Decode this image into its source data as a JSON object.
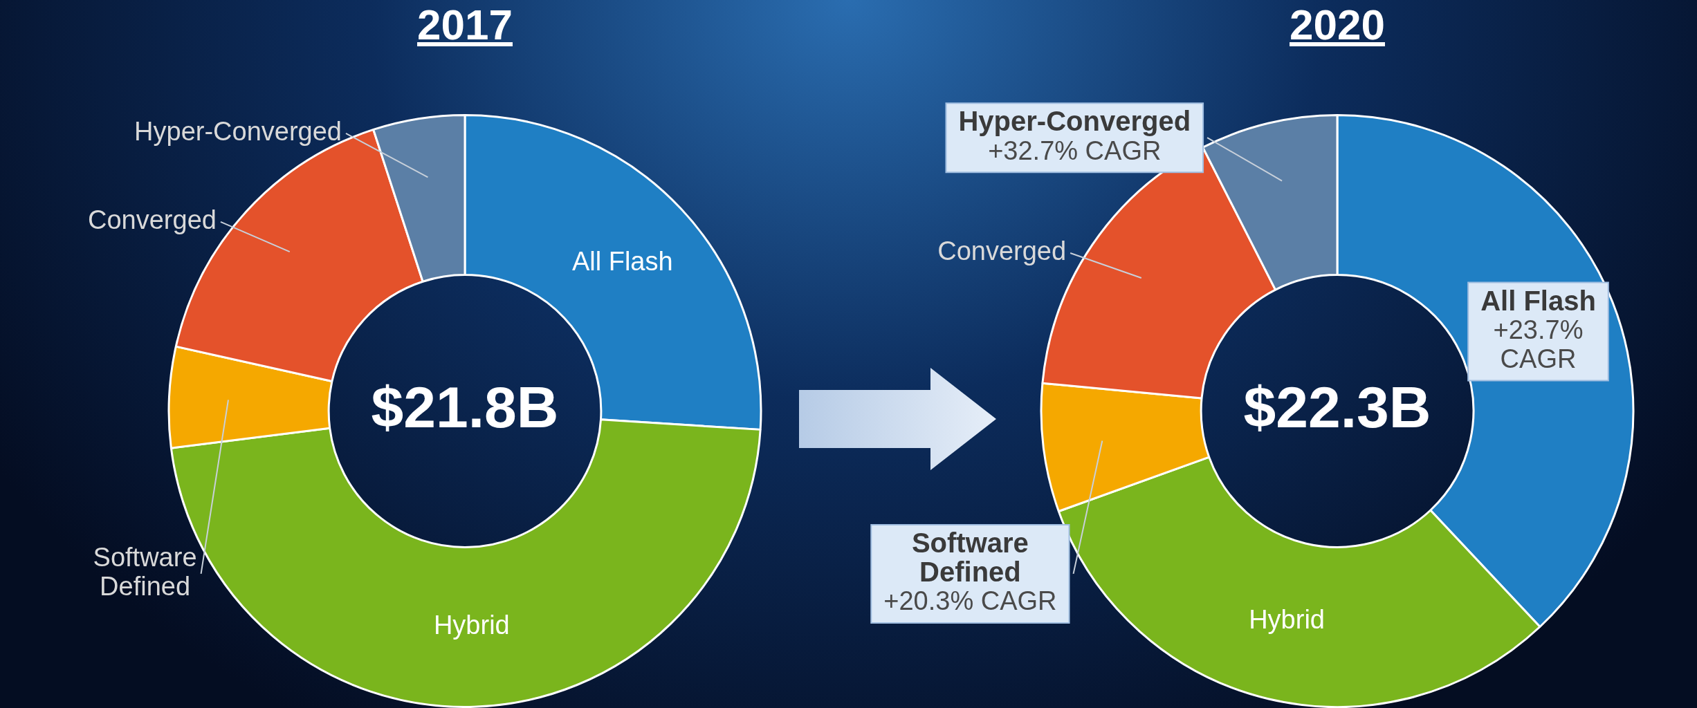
{
  "chart_data": [
    {
      "type": "donut",
      "title": "2017",
      "categories": [
        "All Flash",
        "Hybrid",
        "Software Defined",
        "Converged",
        "Hyper-Converged"
      ],
      "values": [
        26,
        47,
        5.5,
        16.5,
        5
      ],
      "colors": [
        "#1f7fc4",
        "#7ab51d",
        "#f5a800",
        "#e4522b",
        "#5b7fa6"
      ],
      "annotations": [
        "$21.8B"
      ],
      "legend": false
    },
    {
      "type": "donut",
      "title": "2020",
      "categories": [
        "All Flash",
        "Hybrid",
        "Software Defined",
        "Converged",
        "Hyper-Converged"
      ],
      "values": [
        38,
        31.5,
        7,
        16,
        7.5
      ],
      "colors": [
        "#1f7fc4",
        "#7ab51d",
        "#f5a800",
        "#e4522b",
        "#5b7fa6"
      ],
      "annotations": [
        "$22.3B",
        {
          "text": "+23.7% CAGR",
          "x": "All Flash"
        },
        {
          "text": "+20.3% CAGR",
          "x": "Software Defined"
        },
        {
          "text": "+32.7% CAGR",
          "x": "Hyper-Converged"
        }
      ],
      "legend": false
    }
  ]
}
